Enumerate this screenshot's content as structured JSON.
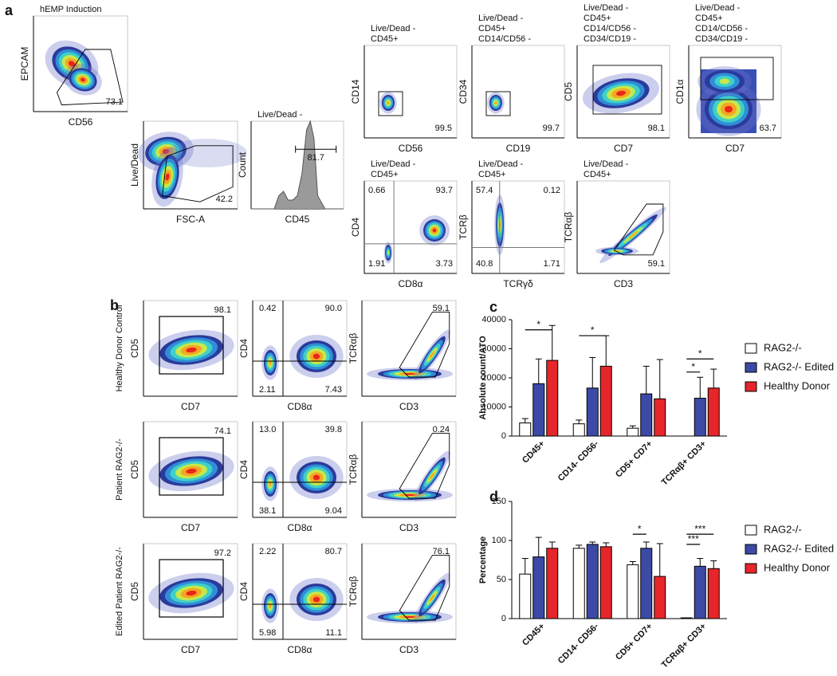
{
  "figure": {
    "panel_labels": [
      "a",
      "b",
      "c",
      "d"
    ],
    "panel_a": {
      "plots": [
        {
          "title": [
            "hEMP Induction"
          ],
          "y_label": "EPCAM",
          "x_label": "CD56",
          "gate_values": [
            "73.1"
          ]
        },
        {
          "title": [],
          "y_label": "Live/Dead",
          "x_label": "FSC-A",
          "gate_values": [
            "42.2"
          ]
        },
        {
          "title": [
            "Live/Dead -"
          ],
          "y_label": "Count",
          "x_label": "CD45",
          "gate_values": [
            "81.7"
          ]
        },
        {
          "title": [
            "Live/Dead -",
            "CD45+"
          ],
          "y_label": "CD14",
          "x_label": "CD56",
          "gate_values": [
            "99.5"
          ]
        },
        {
          "title": [
            "Live/Dead -",
            "CD45+",
            "CD14/CD56 -"
          ],
          "y_label": "CD34",
          "x_label": "CD19",
          "gate_values": [
            "99.7"
          ]
        },
        {
          "title": [
            "Live/Dead -",
            "CD45+",
            "CD14/CD56 -",
            "CD34/CD19 -"
          ],
          "y_label": "CD5",
          "x_label": "CD7",
          "gate_values": [
            "98.1"
          ]
        },
        {
          "title": [
            "Live/Dead -",
            "CD45+",
            "CD14/CD56 -",
            "CD34/CD19 -"
          ],
          "y_label": "CD1α",
          "x_label": "CD7",
          "gate_values": [
            "63.7"
          ]
        },
        {
          "title": [
            "Live/Dead -",
            "CD45+"
          ],
          "y_label": "CD4",
          "x_label": "CD8α",
          "gate_values": [
            "0.66",
            "93.7",
            "1.91",
            "3.73"
          ]
        },
        {
          "title": [
            "Live/Dead -",
            "CD45+"
          ],
          "y_label": "TCRβ",
          "x_label": "TCRγδ",
          "gate_values": [
            "57.4",
            "0.12",
            "40.8",
            "1.71"
          ]
        },
        {
          "title": [
            "Live/Dead -",
            "CD45+"
          ],
          "y_label": "TCRαβ",
          "x_label": "CD3",
          "gate_values": [
            "59.1"
          ]
        }
      ]
    },
    "panel_b": {
      "row_labels": [
        "Healthy Donor Control",
        "Patient RAG2-/-",
        "Edited Patient RAG2-/-"
      ],
      "plots": [
        {
          "y_label": "CD5",
          "x_label": "CD7",
          "gate_values": [
            "98.1"
          ]
        },
        {
          "y_label": "CD4",
          "x_label": "CD8α",
          "gate_values": [
            "0.42",
            "90.0",
            "2.11",
            "7.43"
          ]
        },
        {
          "y_label": "TCRαβ",
          "x_label": "CD3",
          "gate_values": [
            "59.1"
          ]
        },
        {
          "y_label": "CD5",
          "x_label": "CD7",
          "gate_values": [
            "74.1"
          ]
        },
        {
          "y_label": "CD4",
          "x_label": "CD8α",
          "gate_values": [
            "13.0",
            "39.8",
            "38.1",
            "9.04"
          ]
        },
        {
          "y_label": "TCRαβ",
          "x_label": "CD3",
          "gate_values": [
            "0.24"
          ]
        },
        {
          "y_label": "CD5",
          "x_label": "CD7",
          "gate_values": [
            "97.2"
          ]
        },
        {
          "y_label": "CD4",
          "x_label": "CD8α",
          "gate_values": [
            "2.22",
            "80.7",
            "5.98",
            "11.1"
          ]
        },
        {
          "y_label": "TCRαβ",
          "x_label": "CD3",
          "gate_values": [
            "76.1"
          ]
        }
      ]
    }
  },
  "chart_data": [
    {
      "type": "bar",
      "y_label": "Absolute count/ATO",
      "categories": [
        "CD45+",
        "CD14- CD56-",
        "CD5+ CD7+",
        "TCRαβ+ CD3+"
      ],
      "ylim": [
        0,
        40000
      ],
      "yticks": [
        0,
        10000,
        20000,
        30000,
        40000
      ],
      "series": [
        {
          "name": "RAG2-/-",
          "color": "#ffffff",
          "values": [
            4500,
            4200,
            2700,
            0
          ],
          "errors": [
            1500,
            1300,
            800,
            0
          ]
        },
        {
          "name": "RAG2-/- Edited",
          "color": "#3c4aa6",
          "values": [
            18000,
            16500,
            14500,
            13000
          ],
          "errors": [
            8500,
            10500,
            9500,
            7200
          ]
        },
        {
          "name": "Healthy Donor",
          "color": "#e5262a",
          "values": [
            26000,
            24000,
            12800,
            16500
          ],
          "errors": [
            12000,
            10500,
            13500,
            6500
          ]
        }
      ],
      "significance": [
        {
          "category": 0,
          "from": 0,
          "to": 2,
          "at": 36500,
          "label": "*"
        },
        {
          "category": 1,
          "from": 0,
          "to": 2,
          "at": 34500,
          "label": "*"
        },
        {
          "category": 3,
          "from": 0,
          "to": 2,
          "at": 26500,
          "label": "*"
        },
        {
          "category": 3,
          "from": 0,
          "to": 1,
          "at": 22000,
          "label": "*"
        }
      ]
    },
    {
      "type": "bar",
      "y_label": "Percentage",
      "categories": [
        "CD45+",
        "CD14- CD56-",
        "CD5+ CD7+",
        "TCRαβ+ CD3+"
      ],
      "ylim": [
        0,
        150
      ],
      "yticks": [
        0,
        50,
        100,
        150
      ],
      "series": [
        {
          "name": "RAG2-/-",
          "color": "#ffffff",
          "values": [
            57,
            90,
            69,
            1
          ],
          "errors": [
            20,
            4,
            4,
            0
          ]
        },
        {
          "name": "RAG2-/- Edited",
          "color": "#3c4aa6",
          "values": [
            79,
            95,
            90,
            67
          ],
          "errors": [
            25,
            3,
            8,
            10
          ]
        },
        {
          "name": "Healthy Donor",
          "color": "#e5262a",
          "values": [
            90,
            92,
            54,
            64
          ],
          "errors": [
            8,
            5,
            42,
            10
          ]
        }
      ],
      "significance": [
        {
          "category": 2,
          "from": 0,
          "to": 1,
          "at": 108,
          "label": "*"
        },
        {
          "category": 3,
          "from": 0,
          "to": 2,
          "at": 108,
          "label": "***"
        },
        {
          "category": 3,
          "from": 0,
          "to": 1,
          "at": 95,
          "label": "***"
        }
      ]
    }
  ]
}
